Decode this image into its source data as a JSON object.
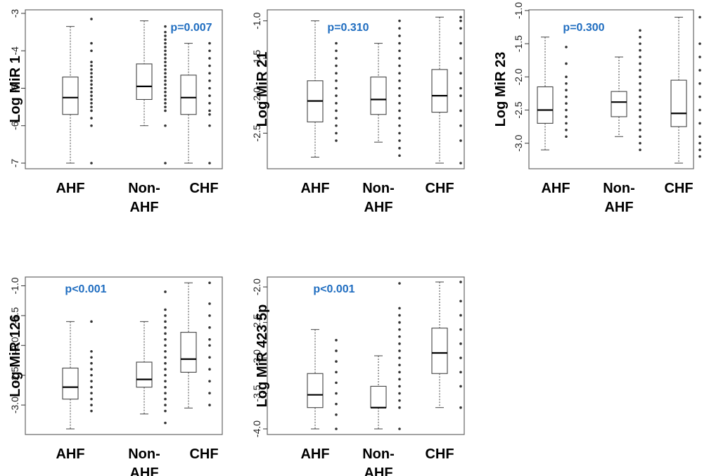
{
  "chart_data": [
    {
      "type": "box",
      "ylabel": "Log MiR 1",
      "annotation": "p=0.007",
      "categories": [
        "AHF",
        "Non-AHF",
        "CHF"
      ],
      "yticks": [
        -3,
        -4,
        -5,
        -6,
        -7
      ],
      "ylim": [
        -7.0,
        -3.0
      ],
      "boxes": [
        {
          "whisker_low": -7.0,
          "q1": -5.7,
          "median": -5.25,
          "q3": -4.7,
          "whisker_high": -3.35
        },
        {
          "whisker_low": -6.0,
          "q1": -5.3,
          "median": -4.95,
          "q3": -4.35,
          "whisker_high": -3.2
        },
        {
          "whisker_low": -7.0,
          "q1": -5.7,
          "median": -5.25,
          "q3": -4.65,
          "whisker_high": -3.8
        }
      ],
      "points": [
        [
          -3.15,
          -3.8,
          -4.0,
          -4.3,
          -4.4,
          -4.5,
          -4.6,
          -4.7,
          -4.8,
          -4.9,
          -5.0,
          -5.1,
          -5.2,
          -5.3,
          -5.4,
          -5.5,
          -5.6,
          -5.8,
          -6.0,
          -7.0
        ],
        [
          -3.35,
          -3.5,
          -3.6,
          -3.7,
          -3.8,
          -3.9,
          -4.0,
          -4.1,
          -4.2,
          -4.3,
          -4.4,
          -4.5,
          -4.6,
          -4.7,
          -4.8,
          -4.9,
          -5.0,
          -5.1,
          -5.2,
          -5.3,
          -5.4,
          -5.5,
          -5.6,
          -6.0,
          -7.0
        ],
        [
          -3.8,
          -4.0,
          -4.2,
          -4.4,
          -4.6,
          -4.8,
          -5.0,
          -5.2,
          -5.4,
          -5.6,
          -5.7,
          -6.0,
          -7.0
        ]
      ]
    },
    {
      "type": "box",
      "ylabel": "Log MiR 21",
      "annotation": "p=0.310",
      "categories": [
        "AHF",
        "Non-AHF",
        "CHF"
      ],
      "yticks": [
        -1.0,
        -1.5,
        -2.0,
        -2.5
      ],
      "ylim": [
        -2.9,
        -0.9
      ],
      "boxes": [
        {
          "whisker_low": -2.82,
          "q1": -2.35,
          "median": -2.07,
          "q3": -1.8,
          "whisker_high": -1.0
        },
        {
          "whisker_low": -2.62,
          "q1": -2.25,
          "median": -2.05,
          "q3": -1.75,
          "whisker_high": -1.3
        },
        {
          "whisker_low": -2.9,
          "q1": -2.22,
          "median": -2.0,
          "q3": -1.65,
          "whisker_high": -0.95
        }
      ],
      "points": [
        [
          -1.3,
          -1.4,
          -1.5,
          -1.6,
          -1.7,
          -1.8,
          -1.9,
          -2.0,
          -2.1,
          -2.2,
          -2.3,
          -2.4,
          -2.5,
          -2.6
        ],
        [
          -1.0,
          -1.1,
          -1.2,
          -1.3,
          -1.4,
          -1.5,
          -1.6,
          -1.7,
          -1.8,
          -1.9,
          -2.0,
          -2.1,
          -2.2,
          -2.3,
          -2.4,
          -2.5,
          -2.6,
          -2.7,
          -2.8
        ],
        [
          -0.95,
          -1.0,
          -1.1,
          -1.3,
          -1.5,
          -1.7,
          -1.9,
          -2.0,
          -2.2,
          -2.4,
          -2.6,
          -2.9
        ]
      ]
    },
    {
      "type": "box",
      "ylabel": "Log MiR 23",
      "annotation": "p=0.300",
      "categories": [
        "AHF",
        "Non-AHF",
        "CHF"
      ],
      "yticks": [
        -1.0,
        -1.5,
        -2.0,
        -2.5,
        -3.0
      ],
      "ylim": [
        -3.3,
        -1.0
      ],
      "boxes": [
        {
          "whisker_low": -3.1,
          "q1": -2.7,
          "median": -2.5,
          "q3": -2.15,
          "whisker_high": -1.4
        },
        {
          "whisker_low": -2.9,
          "q1": -2.6,
          "median": -2.38,
          "q3": -2.22,
          "whisker_high": -1.7
        },
        {
          "whisker_low": -3.3,
          "q1": -2.75,
          "median": -2.55,
          "q3": -2.05,
          "whisker_high": -1.1
        }
      ],
      "points": [
        [
          -1.55,
          -1.8,
          -2.0,
          -2.1,
          -2.2,
          -2.3,
          -2.4,
          -2.5,
          -2.6,
          -2.7,
          -2.8,
          -2.9
        ],
        [
          -1.3,
          -1.4,
          -1.5,
          -1.6,
          -1.7,
          -1.8,
          -1.9,
          -2.0,
          -2.1,
          -2.2,
          -2.3,
          -2.4,
          -2.5,
          -2.6,
          -2.7,
          -2.8,
          -2.9,
          -3.0,
          -3.1
        ],
        [
          -1.1,
          -1.5,
          -1.7,
          -1.9,
          -2.1,
          -2.3,
          -2.5,
          -2.7,
          -2.9,
          -3.0,
          -3.1,
          -3.2
        ]
      ]
    },
    {
      "type": "box",
      "ylabel": "Log MiR 126",
      "annotation": "p<0.001",
      "categories": [
        "AHF",
        "Non-AHF",
        "CHF"
      ],
      "yticks": [
        -1.0,
        -1.5,
        -2.0,
        -2.5,
        -3.0
      ],
      "ylim": [
        -3.4,
        -0.9
      ],
      "boxes": [
        {
          "whisker_low": -3.4,
          "q1": -2.9,
          "median": -2.7,
          "q3": -2.38,
          "whisker_high": -1.6
        },
        {
          "whisker_low": -3.15,
          "q1": -2.7,
          "median": -2.57,
          "q3": -2.28,
          "whisker_high": -1.6
        },
        {
          "whisker_low": -3.05,
          "q1": -2.45,
          "median": -2.23,
          "q3": -1.78,
          "whisker_high": -0.95
        }
      ],
      "points": [
        [
          -1.6,
          -2.1,
          -2.2,
          -2.3,
          -2.4,
          -2.5,
          -2.6,
          -2.7,
          -2.8,
          -2.9,
          -3.0,
          -3.1
        ],
        [
          -1.1,
          -1.4,
          -1.5,
          -1.6,
          -1.7,
          -1.8,
          -1.9,
          -2.0,
          -2.1,
          -2.2,
          -2.3,
          -2.4,
          -2.5,
          -2.6,
          -2.7,
          -2.8,
          -2.9,
          -3.0,
          -3.1,
          -3.3
        ],
        [
          -0.95,
          -1.3,
          -1.5,
          -1.7,
          -1.9,
          -2.0,
          -2.2,
          -2.4,
          -2.6,
          -2.8,
          -3.0
        ]
      ]
    },
    {
      "type": "box",
      "ylabel": "Log MiR 423 5p",
      "annotation": "p<0.001",
      "categories": [
        "AHF",
        "Non-AHF",
        "CHF"
      ],
      "yticks": [
        -2.0,
        -2.5,
        -3.0,
        -3.5,
        -4.0
      ],
      "ylim": [
        -4.0,
        -1.9
      ],
      "boxes": [
        {
          "whisker_low": -4.0,
          "q1": -3.7,
          "median": -3.52,
          "q3": -3.22,
          "whisker_high": -2.6
        },
        {
          "whisker_low": -4.0,
          "q1": -3.7,
          "median": -3.7,
          "q3": -3.4,
          "whisker_high": -2.97
        },
        {
          "whisker_low": -3.7,
          "q1": -3.22,
          "median": -2.93,
          "q3": -2.58,
          "whisker_high": -1.93
        }
      ],
      "points": [
        [
          -2.75,
          -2.9,
          -3.05,
          -3.2,
          -3.35,
          -3.5,
          -3.65,
          -3.8,
          -4.0
        ],
        [
          -1.95,
          -2.3,
          -2.4,
          -2.5,
          -2.6,
          -2.7,
          -2.8,
          -2.9,
          -3.0,
          -3.1,
          -3.2,
          -3.3,
          -3.4,
          -3.5,
          -3.6,
          -3.7,
          -4.0
        ],
        [
          -1.93,
          -2.2,
          -2.4,
          -2.6,
          -2.8,
          -3.0,
          -3.2,
          -3.4,
          -3.7
        ]
      ]
    }
  ]
}
